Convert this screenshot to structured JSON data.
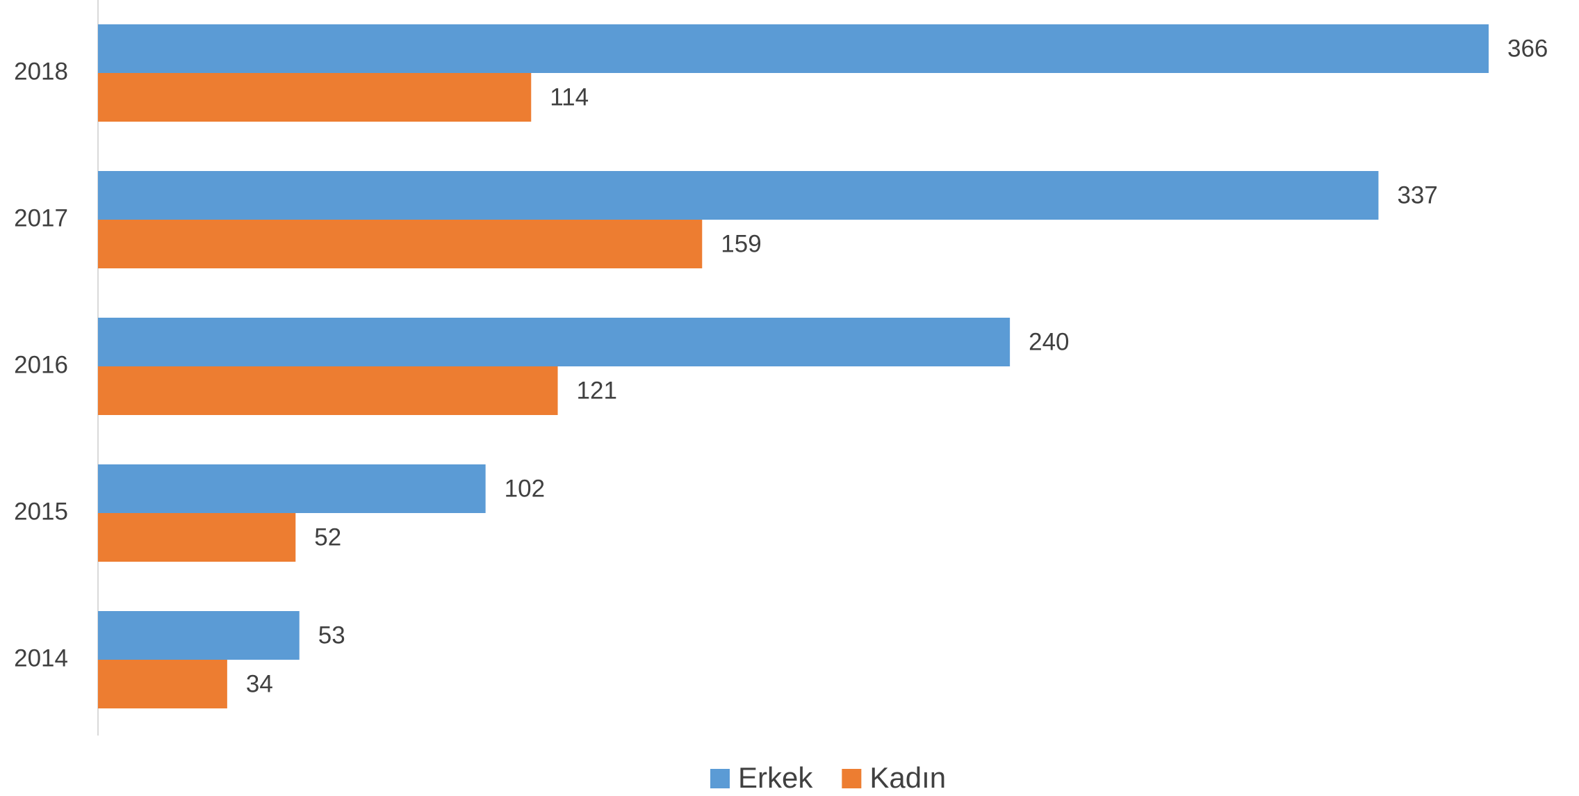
{
  "chart_data": {
    "type": "bar",
    "orientation": "horizontal",
    "categories": [
      "2018",
      "2017",
      "2016",
      "2015",
      "2014"
    ],
    "series": [
      {
        "name": "Erkek",
        "color": "#5B9BD5",
        "values": [
          366,
          337,
          240,
          102,
          53
        ]
      },
      {
        "name": "Kadın",
        "color": "#ED7D31",
        "values": [
          114,
          159,
          121,
          52,
          34
        ]
      }
    ],
    "title": "",
    "xlabel": "",
    "ylabel": "",
    "xlim": [
      0,
      366
    ],
    "grid": false,
    "legend": "bottom-center",
    "data_labels": true
  }
}
